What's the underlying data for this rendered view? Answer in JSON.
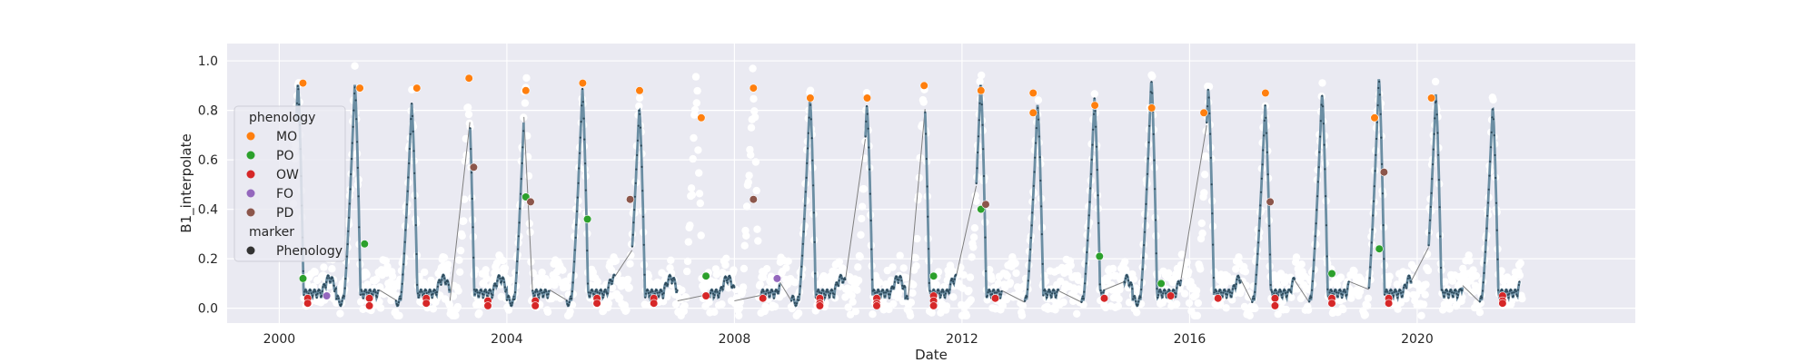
{
  "chart_data": {
    "type": "scatter",
    "title": "",
    "xlabel": "Date",
    "ylabel": "B1_interpolate",
    "xlim": [
      "1999-02-01",
      "2023-11-01"
    ],
    "ylim": [
      -0.06,
      1.07
    ],
    "x_ticks": [
      "2000",
      "2004",
      "2008",
      "2012",
      "2016",
      "2020"
    ],
    "y_ticks": [
      "0.0",
      "0.2",
      "0.4",
      "0.6",
      "0.8",
      "1.0"
    ],
    "grid": true,
    "legend": {
      "placement": "upper-left",
      "hue_title": "phenology",
      "style_title": "marker",
      "style_entry": "Phenology",
      "entries": [
        {
          "label": "MO",
          "color": "#ff7f0e"
        },
        {
          "label": "PO",
          "color": "#2ca02c"
        },
        {
          "label": "OW",
          "color": "#d62728"
        },
        {
          "label": "FO",
          "color": "#9467bd"
        },
        {
          "label": "PD",
          "color": "#8c564b"
        }
      ]
    },
    "colors": {
      "background": "#eaeaf2",
      "grid": "#ffffff",
      "raw_points": "#ffffff",
      "smoothed_line": "#6b8ea3",
      "interpolated_points": "#2e4a5b",
      "gap_line": "#7f7f7f"
    },
    "series": [
      {
        "name": "MO",
        "points": [
          [
            "2000-06-01",
            0.91
          ],
          [
            "2001-06-01",
            0.89
          ],
          [
            "2002-06-01",
            0.89
          ],
          [
            "2003-05-01",
            0.93
          ],
          [
            "2004-05-01",
            0.88
          ],
          [
            "2005-05-01",
            0.91
          ],
          [
            "2006-05-01",
            0.88
          ],
          [
            "2007-06-01",
            0.77
          ],
          [
            "2008-05-01",
            0.89
          ],
          [
            "2009-05-01",
            0.85
          ],
          [
            "2010-05-01",
            0.85
          ],
          [
            "2011-05-01",
            0.9
          ],
          [
            "2012-05-01",
            0.88
          ],
          [
            "2013-04-01",
            0.87
          ],
          [
            "2013-04-01",
            0.79
          ],
          [
            "2014-05-01",
            0.82
          ],
          [
            "2015-05-01",
            0.81
          ],
          [
            "2016-04-01",
            0.79
          ],
          [
            "2017-05-01",
            0.87
          ],
          [
            "2019-04-01",
            0.77
          ],
          [
            "2020-04-01",
            0.85
          ]
        ]
      },
      {
        "name": "PO",
        "points": [
          [
            "2000-06-01",
            0.12
          ],
          [
            "2001-07-01",
            0.26
          ],
          [
            "2004-05-01",
            0.45
          ],
          [
            "2005-06-01",
            0.36
          ],
          [
            "2007-07-01",
            0.13
          ],
          [
            "2011-07-01",
            0.13
          ],
          [
            "2012-05-01",
            0.4
          ],
          [
            "2014-06-01",
            0.21
          ],
          [
            "2015-07-01",
            0.1
          ],
          [
            "2018-07-01",
            0.14
          ],
          [
            "2019-05-01",
            0.24
          ]
        ]
      },
      {
        "name": "OW",
        "points": [
          [
            "2000-07-01",
            0.04
          ],
          [
            "2000-07-01",
            0.02
          ],
          [
            "2001-08-01",
            0.04
          ],
          [
            "2001-08-01",
            0.01
          ],
          [
            "2002-08-01",
            0.04
          ],
          [
            "2002-08-01",
            0.02
          ],
          [
            "2003-09-01",
            0.03
          ],
          [
            "2003-09-01",
            0.01
          ],
          [
            "2004-07-01",
            0.03
          ],
          [
            "2004-07-01",
            0.01
          ],
          [
            "2005-08-01",
            0.04
          ],
          [
            "2005-08-01",
            0.02
          ],
          [
            "2006-08-01",
            0.04
          ],
          [
            "2006-08-01",
            0.02
          ],
          [
            "2007-07-01",
            0.05
          ],
          [
            "2008-07-01",
            0.04
          ],
          [
            "2009-07-01",
            0.04
          ],
          [
            "2009-07-01",
            0.02
          ],
          [
            "2009-07-01",
            0.01
          ],
          [
            "2010-07-01",
            0.04
          ],
          [
            "2010-07-01",
            0.02
          ],
          [
            "2010-07-01",
            0.01
          ],
          [
            "2011-07-01",
            0.05
          ],
          [
            "2011-07-01",
            0.03
          ],
          [
            "2011-07-01",
            0.01
          ],
          [
            "2012-08-01",
            0.04
          ],
          [
            "2014-07-01",
            0.04
          ],
          [
            "2015-09-01",
            0.05
          ],
          [
            "2016-07-01",
            0.04
          ],
          [
            "2017-07-01",
            0.04
          ],
          [
            "2017-07-01",
            0.01
          ],
          [
            "2018-07-01",
            0.04
          ],
          [
            "2018-07-01",
            0.02
          ],
          [
            "2019-07-01",
            0.04
          ],
          [
            "2019-07-01",
            0.02
          ],
          [
            "2021-07-01",
            0.05
          ],
          [
            "2021-07-01",
            0.03
          ],
          [
            "2021-07-01",
            0.02
          ]
        ]
      },
      {
        "name": "FO",
        "points": [
          [
            "2000-11-01",
            0.05
          ],
          [
            "2008-10-01",
            0.12
          ]
        ]
      },
      {
        "name": "PD",
        "points": [
          [
            "2003-06-01",
            0.57
          ],
          [
            "2004-06-01",
            0.43
          ],
          [
            "2006-03-01",
            0.44
          ],
          [
            "2008-05-01",
            0.44
          ],
          [
            "2012-06-01",
            0.42
          ],
          [
            "2017-06-01",
            0.43
          ],
          [
            "2019-06-01",
            0.55
          ]
        ]
      }
    ]
  }
}
